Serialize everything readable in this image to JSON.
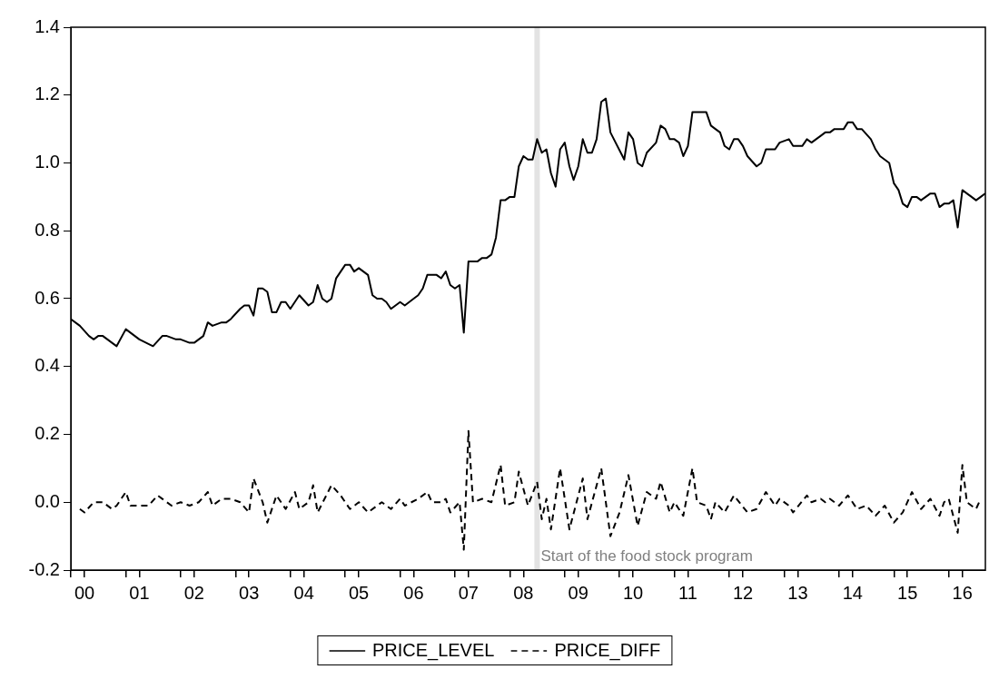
{
  "chart_data": {
    "type": "line",
    "xlim": [
      "2000-01",
      "2016-09"
    ],
    "xticks": [
      {
        "value": "2000-01",
        "label": null
      },
      {
        "value": "2000-04",
        "label": "00"
      },
      {
        "value": "2001-01",
        "label": null
      },
      {
        "value": "2001-04",
        "label": "01"
      },
      {
        "value": "2002-01",
        "label": null
      },
      {
        "value": "2002-04",
        "label": "02"
      },
      {
        "value": "2003-01",
        "label": null
      },
      {
        "value": "2003-04",
        "label": "03"
      },
      {
        "value": "2004-01",
        "label": null
      },
      {
        "value": "2004-04",
        "label": "04"
      },
      {
        "value": "2005-01",
        "label": null
      },
      {
        "value": "2005-04",
        "label": "05"
      },
      {
        "value": "2006-01",
        "label": null
      },
      {
        "value": "2006-04",
        "label": "06"
      },
      {
        "value": "2007-01",
        "label": null
      },
      {
        "value": "2007-04",
        "label": "07"
      },
      {
        "value": "2008-01",
        "label": null
      },
      {
        "value": "2008-04",
        "label": "08"
      },
      {
        "value": "2009-01",
        "label": null
      },
      {
        "value": "2009-04",
        "label": "09"
      },
      {
        "value": "2010-01",
        "label": null
      },
      {
        "value": "2010-04",
        "label": "10"
      },
      {
        "value": "2011-01",
        "label": null
      },
      {
        "value": "2011-04",
        "label": "11"
      },
      {
        "value": "2012-01",
        "label": null
      },
      {
        "value": "2012-04",
        "label": "12"
      },
      {
        "value": "2013-01",
        "label": null
      },
      {
        "value": "2013-04",
        "label": "13"
      },
      {
        "value": "2014-01",
        "label": null
      },
      {
        "value": "2014-04",
        "label": "14"
      },
      {
        "value": "2015-01",
        "label": null
      },
      {
        "value": "2015-04",
        "label": "15"
      },
      {
        "value": "2016-01",
        "label": null
      },
      {
        "value": "2016-04",
        "label": "16"
      }
    ],
    "ylim": [
      -0.2,
      1.4
    ],
    "yticks": [
      {
        "value": -0.2,
        "label": "-0.2"
      },
      {
        "value": 0,
        "label": "0.0"
      },
      {
        "value": 0.2,
        "label": "0.2"
      },
      {
        "value": 0.4,
        "label": "0.4"
      },
      {
        "value": 0.6,
        "label": "0.6"
      },
      {
        "value": 0.8,
        "label": "0.8"
      },
      {
        "value": 1,
        "label": "1.0"
      },
      {
        "value": 1.2,
        "label": "1.2"
      },
      {
        "value": 1.4,
        "label": "1.4"
      }
    ],
    "grid": false,
    "legend": "bottom",
    "ref_lines": [
      {
        "axis": "x",
        "value": "2008-07",
        "label": "Start of the food stock program",
        "color": "#e3e3e3"
      }
    ],
    "series": [
      {
        "name": "PRICE_LEVEL",
        "color": "#000000",
        "line_style": "solid",
        "x": [
          "2000-01",
          "2000-03",
          "2000-05",
          "2000-06",
          "2000-07",
          "2000-08",
          "2000-10",
          "2000-11",
          "2001-01",
          "2001-04",
          "2001-07",
          "2001-09",
          "2001-10",
          "2001-12",
          "2002-01",
          "2002-03",
          "2002-04",
          "2002-06",
          "2002-07",
          "2002-08",
          "2002-10",
          "2002-11",
          "2002-12",
          "2003-02",
          "2003-03",
          "2003-04",
          "2003-05",
          "2003-06",
          "2003-07",
          "2003-08",
          "2003-09",
          "2003-10",
          "2003-11",
          "2003-12",
          "2004-01",
          "2004-03",
          "2004-05",
          "2004-06",
          "2004-07",
          "2004-08",
          "2004-09",
          "2004-10",
          "2004-11",
          "2005-01",
          "2005-02",
          "2005-03",
          "2005-04",
          "2005-06",
          "2005-07",
          "2005-08",
          "2005-09",
          "2005-10",
          "2005-11",
          "2006-01",
          "2006-02",
          "2006-04",
          "2006-05",
          "2006-06",
          "2006-07",
          "2006-09",
          "2006-10",
          "2006-11",
          "2006-12",
          "2007-01",
          "2007-02",
          "2007-03",
          "2007-04",
          "2007-06",
          "2007-07",
          "2007-08",
          "2007-09",
          "2007-10",
          "2007-11",
          "2007-12",
          "2008-01",
          "2008-02",
          "2008-03",
          "2008-04",
          "2008-05",
          "2008-06",
          "2008-07",
          "2008-08",
          "2008-09",
          "2008-10",
          "2008-11",
          "2008-12",
          "2009-01",
          "2009-02",
          "2009-03",
          "2009-04",
          "2009-05",
          "2009-06",
          "2009-07",
          "2009-08",
          "2009-09",
          "2009-10",
          "2009-11",
          "2010-02",
          "2010-03",
          "2010-04",
          "2010-05",
          "2010-06",
          "2010-07",
          "2010-09",
          "2010-10",
          "2010-11",
          "2010-12",
          "2011-01",
          "2011-02",
          "2011-03",
          "2011-04",
          "2011-05",
          "2011-06",
          "2011-08",
          "2011-09",
          "2011-10",
          "2011-11",
          "2011-12",
          "2012-01",
          "2012-02",
          "2012-03",
          "2012-04",
          "2012-05",
          "2012-07",
          "2012-08",
          "2012-09",
          "2012-10",
          "2012-11",
          "2012-12",
          "2013-02",
          "2013-03",
          "2013-05",
          "2013-06",
          "2013-07",
          "2013-08",
          "2013-09",
          "2013-10",
          "2013-11",
          "2013-12",
          "2014-01",
          "2014-02",
          "2014-03",
          "2014-04",
          "2014-05",
          "2014-06",
          "2014-08",
          "2014-09",
          "2014-10",
          "2014-12",
          "2015-01",
          "2015-02",
          "2015-03",
          "2015-04",
          "2015-05",
          "2015-06",
          "2015-07",
          "2015-08",
          "2015-09",
          "2015-10",
          "2015-11",
          "2015-12",
          "2016-01",
          "2016-02",
          "2016-03",
          "2016-04",
          "2016-05",
          "2016-06",
          "2016-07",
          "2016-08",
          "2016-09"
        ],
        "values": [
          0.54,
          0.52,
          0.49,
          0.48,
          0.49,
          0.49,
          0.47,
          0.46,
          0.51,
          0.48,
          0.46,
          0.49,
          0.49,
          0.48,
          0.48,
          0.47,
          0.47,
          0.49,
          0.53,
          0.52,
          0.53,
          0.53,
          0.54,
          0.57,
          0.58,
          0.58,
          0.55,
          0.63,
          0.63,
          0.62,
          0.56,
          0.56,
          0.59,
          0.59,
          0.57,
          0.61,
          0.58,
          0.59,
          0.64,
          0.6,
          0.59,
          0.6,
          0.66,
          0.7,
          0.7,
          0.68,
          0.69,
          0.67,
          0.61,
          0.6,
          0.6,
          0.59,
          0.57,
          0.59,
          0.58,
          0.6,
          0.61,
          0.63,
          0.67,
          0.67,
          0.66,
          0.68,
          0.64,
          0.63,
          0.64,
          0.5,
          0.71,
          0.71,
          0.72,
          0.72,
          0.73,
          0.78,
          0.89,
          0.89,
          0.9,
          0.9,
          0.99,
          1.02,
          1.01,
          1.01,
          1.07,
          1.03,
          1.04,
          0.97,
          0.93,
          1.04,
          1.06,
          0.99,
          0.95,
          0.99,
          1.07,
          1.03,
          1.03,
          1.07,
          1.18,
          1.19,
          1.09,
          1.01,
          1.09,
          1.07,
          1.0,
          0.99,
          1.03,
          1.06,
          1.11,
          1.1,
          1.07,
          1.07,
          1.06,
          1.02,
          1.05,
          1.15,
          1.15,
          1.15,
          1.11,
          1.1,
          1.09,
          1.05,
          1.04,
          1.07,
          1.07,
          1.05,
          1.02,
          0.99,
          1.0,
          1.04,
          1.04,
          1.04,
          1.06,
          1.07,
          1.05,
          1.05,
          1.07,
          1.06,
          1.07,
          1.08,
          1.09,
          1.09,
          1.1,
          1.1,
          1.1,
          1.12,
          1.12,
          1.1,
          1.1,
          1.07,
          1.04,
          1.02,
          1.0,
          0.94,
          0.92,
          0.88,
          0.87,
          0.9,
          0.9,
          0.89,
          0.9,
          0.91,
          0.91,
          0.87,
          0.88,
          0.88,
          0.89,
          0.81,
          0.92,
          0.91,
          0.9,
          0.89,
          0.9,
          0.91
        ]
      },
      {
        "name": "PRICE_DIFF",
        "color": "#000000",
        "line_style": "dashed",
        "x": [
          "2000-03",
          "2000-04",
          "2000-06",
          "2000-08",
          "2000-10",
          "2000-11",
          "2001-01",
          "2001-02",
          "2001-06",
          "2001-08",
          "2001-11",
          "2002-01",
          "2002-03",
          "2002-05",
          "2002-07",
          "2002-08",
          "2002-10",
          "2002-12",
          "2003-02",
          "2003-04",
          "2003-05",
          "2003-07",
          "2003-08",
          "2003-10",
          "2003-12",
          "2004-02",
          "2004-03",
          "2004-05",
          "2004-06",
          "2004-07",
          "2004-10",
          "2004-12",
          "2005-02",
          "2005-04",
          "2005-06",
          "2005-09",
          "2005-11",
          "2006-01",
          "2006-02",
          "2006-05",
          "2006-07",
          "2006-08",
          "2006-10",
          "2006-11",
          "2006-12",
          "2007-02",
          "2007-03",
          "2007-04",
          "2007-05",
          "2007-07",
          "2007-09",
          "2007-11",
          "2007-12",
          "2008-02",
          "2008-03",
          "2008-05",
          "2008-07",
          "2008-08",
          "2008-09",
          "2008-10",
          "2008-12",
          "2009-02",
          "2009-05",
          "2009-06",
          "2009-09",
          "2009-11",
          "2010-01",
          "2010-03",
          "2010-05",
          "2010-07",
          "2010-09",
          "2010-10",
          "2010-12",
          "2011-01",
          "2011-03",
          "2011-05",
          "2011-06",
          "2011-08",
          "2011-09",
          "2011-10",
          "2011-12",
          "2012-02",
          "2012-05",
          "2012-07",
          "2012-09",
          "2012-11",
          "2012-12",
          "2013-02",
          "2013-03",
          "2013-06",
          "2013-07",
          "2013-09",
          "2013-10",
          "2013-11",
          "2014-01",
          "2014-03",
          "2014-05",
          "2014-07",
          "2014-09",
          "2014-11",
          "2015-01",
          "2015-03",
          "2015-05",
          "2015-07",
          "2015-09",
          "2015-11",
          "2015-12",
          "2016-01",
          "2016-03",
          "2016-04",
          "2016-05",
          "2016-07",
          "2016-08"
        ],
        "values": [
          -0.02,
          -0.03,
          0.0,
          0.0,
          -0.02,
          -0.01,
          0.03,
          -0.01,
          -0.01,
          0.02,
          -0.01,
          0.0,
          -0.01,
          0.0,
          0.03,
          -0.01,
          0.01,
          0.01,
          0.0,
          -0.03,
          0.07,
          0.0,
          -0.06,
          0.02,
          -0.02,
          0.03,
          -0.02,
          0.0,
          0.05,
          -0.03,
          0.05,
          0.02,
          -0.02,
          0.0,
          -0.03,
          0.0,
          -0.02,
          0.01,
          -0.01,
          0.01,
          0.03,
          0.0,
          0.0,
          0.01,
          -0.03,
          0.0,
          -0.14,
          0.21,
          0.0,
          0.01,
          0.0,
          0.11,
          -0.01,
          0.0,
          0.09,
          -0.01,
          0.06,
          -0.05,
          0.01,
          -0.08,
          0.1,
          -0.08,
          0.07,
          -0.05,
          0.1,
          -0.1,
          -0.03,
          0.08,
          -0.07,
          0.03,
          0.01,
          0.06,
          -0.03,
          0.0,
          -0.04,
          0.1,
          0.0,
          -0.01,
          -0.05,
          0.0,
          -0.03,
          0.02,
          -0.03,
          -0.02,
          0.03,
          -0.01,
          0.01,
          -0.01,
          -0.03,
          0.02,
          0.0,
          0.01,
          0.0,
          0.01,
          -0.01,
          0.02,
          -0.02,
          -0.01,
          -0.04,
          -0.01,
          -0.06,
          -0.03,
          0.03,
          -0.02,
          0.01,
          -0.04,
          0.0,
          0.01,
          -0.09,
          0.11,
          0.0,
          -0.02,
          0.01
        ]
      }
    ]
  }
}
